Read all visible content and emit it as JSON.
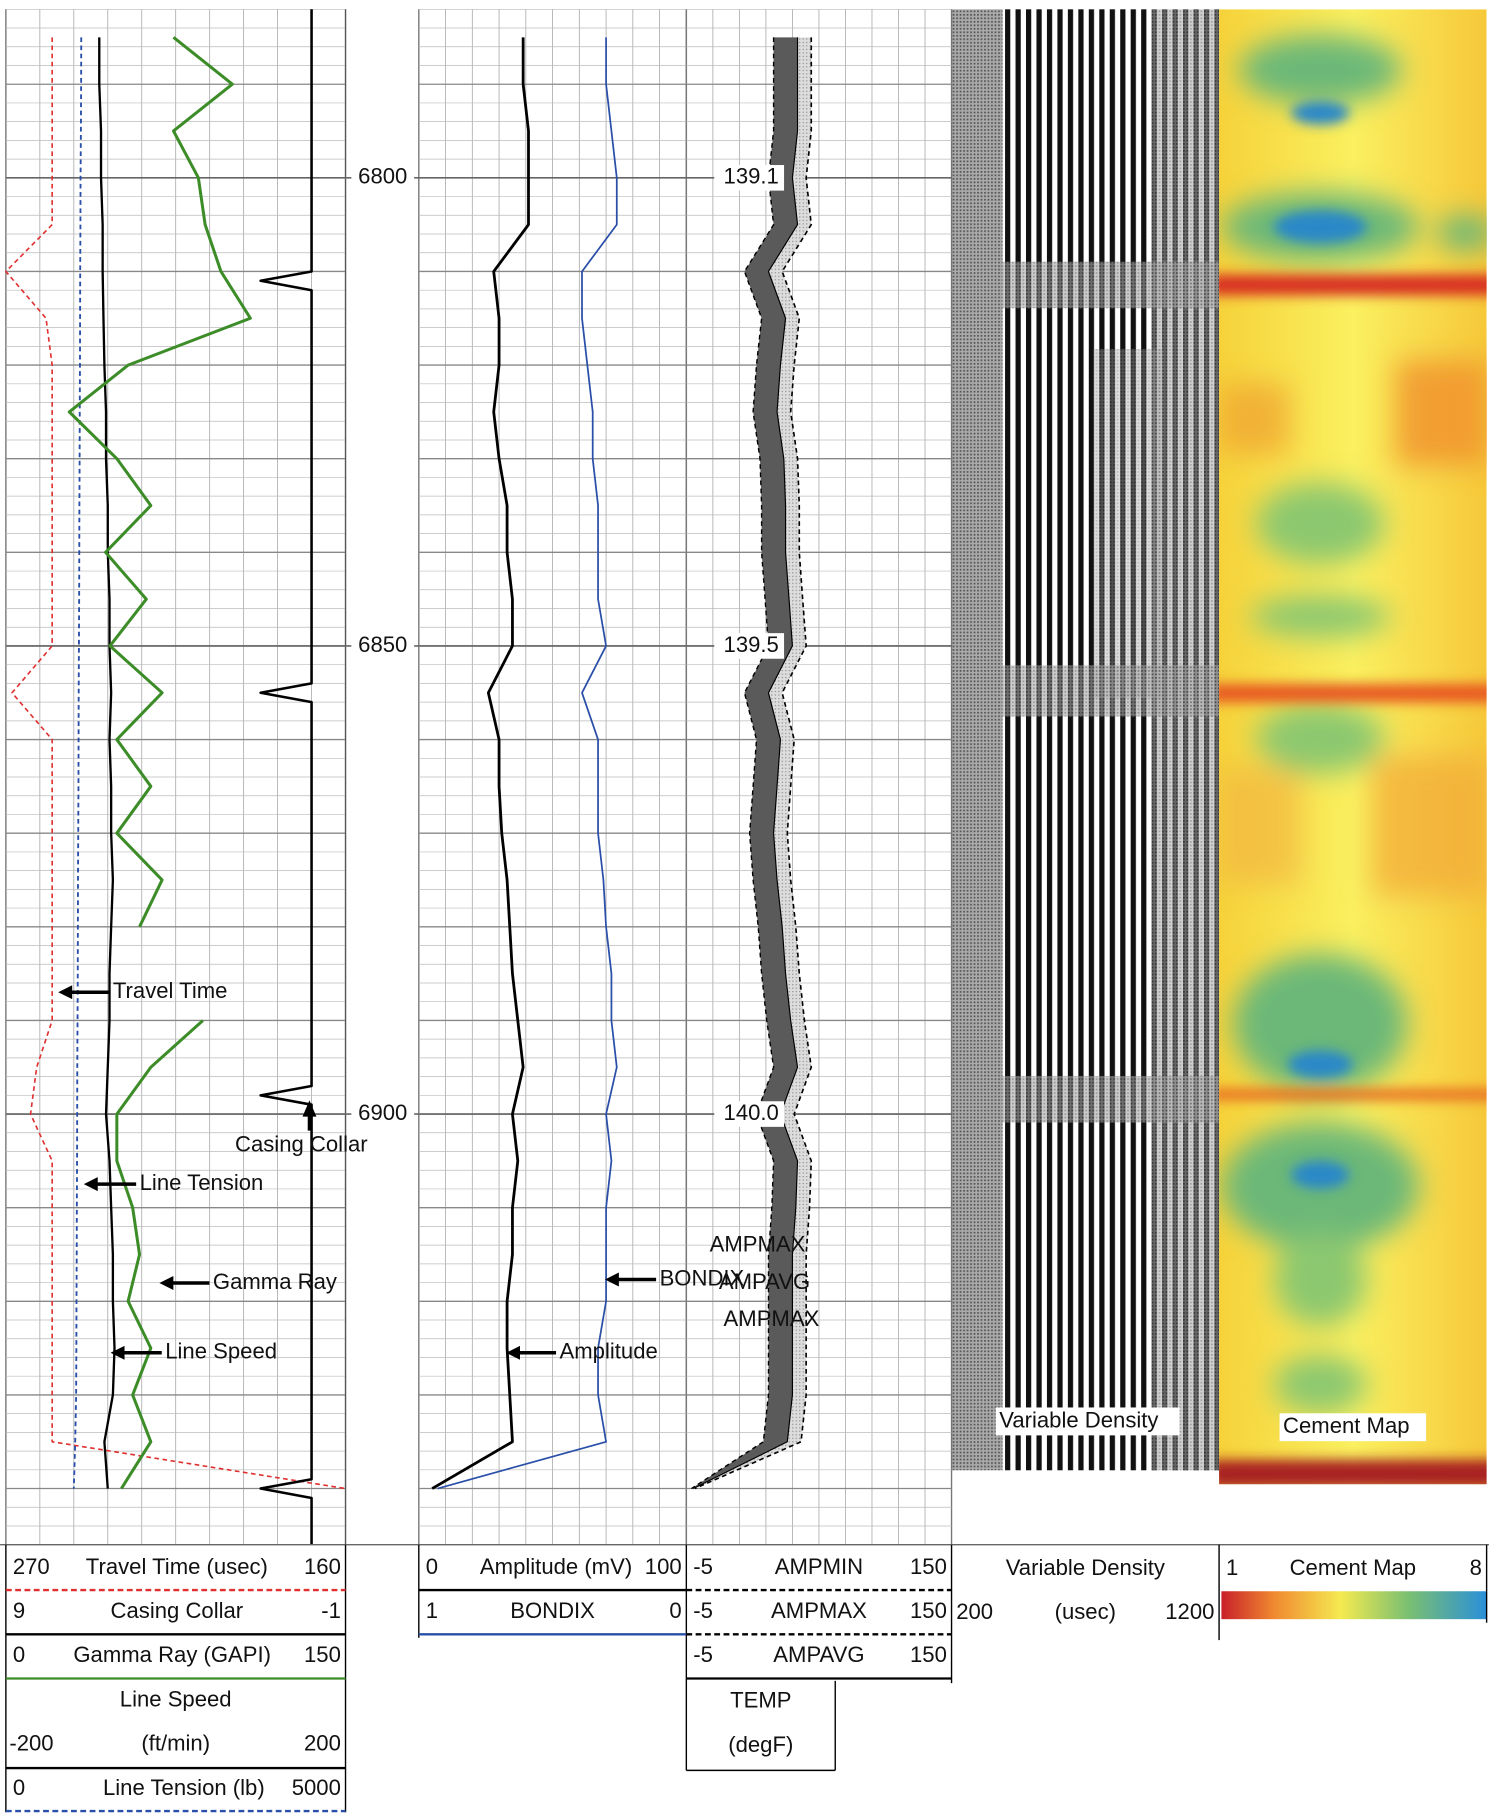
{
  "chart_data": {
    "type": "well-log",
    "depth": {
      "lim": [
        6782,
        6946
      ],
      "ticks": [
        6800,
        6850,
        6900
      ],
      "samples": [
        6785,
        6790,
        6795,
        6800,
        6805,
        6810,
        6815,
        6820,
        6825,
        6830,
        6835,
        6840,
        6845,
        6850,
        6855,
        6860,
        6865,
        6870,
        6875,
        6880,
        6885,
        6890,
        6895,
        6900,
        6905,
        6910,
        6915,
        6920,
        6925,
        6930,
        6935,
        6940
      ]
    },
    "tracks": [
      {
        "curves": [
          {
            "name": "Travel Time (usec)",
            "left": 270,
            "right": 160,
            "color": "#e03030",
            "dashed": true,
            "values": [
              255,
              255,
              255,
              255,
              255,
              270,
              257,
              255,
              255,
              255,
              255,
              255,
              255,
              255,
              268,
              255,
              255,
              255,
              255,
              255,
              255,
              255,
              260,
              262,
              255,
              255,
              255,
              255,
              255,
              255,
              255,
              160
            ]
          },
          {
            "name": "Casing Collar",
            "left": 9,
            "right": -1,
            "color": "#000000",
            "dashed": false,
            "depths": [
              6782,
              6810,
              6811,
              6812,
              6854,
              6855,
              6856,
              6897,
              6898,
              6899,
              6939,
              6940,
              6941,
              6946
            ],
            "values": [
              0,
              0,
              1.5,
              0,
              0,
              1.5,
              0,
              0,
              1.5,
              0,
              0,
              1.5,
              0,
              0
            ]
          },
          {
            "name": "Gamma Ray (GAPI)",
            "left": 0,
            "right": 150,
            "color": "#3c8c28",
            "dashed": false,
            "values": [
              74,
              100,
              74,
              85,
              88,
              95,
              108,
              54,
              28,
              49,
              64,
              44,
              62,
              46,
              69,
              49,
              64,
              49,
              69,
              59,
              null,
              87,
              64,
              49,
              49,
              56,
              59,
              54,
              64,
              56,
              64,
              51
            ]
          },
          {
            "name": "Line Speed",
            "unit": "(ft/min)",
            "left": -200,
            "right": 200,
            "color": "#000000",
            "dashed": false,
            "values": [
              -90,
              -90,
              -88,
              -88,
              -86,
              -86,
              -85,
              -84,
              -82,
              -82,
              -80,
              -80,
              -78,
              -78,
              -76,
              -78,
              -76,
              -76,
              -74,
              -76,
              -78,
              -78,
              -80,
              -82,
              -78,
              -76,
              -74,
              -74,
              -72,
              -74,
              -84,
              -80
            ]
          },
          {
            "name": "Line Tension (lb)",
            "left": 0,
            "right": 5000,
            "color": "#2a4fa8",
            "dashed": true,
            "values": [
              1110,
              1108,
              1105,
              1100,
              1098,
              1095,
              1092,
              1090,
              1088,
              1085,
              1082,
              1080,
              1078,
              1075,
              1072,
              1070,
              1068,
              1065,
              1062,
              1060,
              1058,
              1055,
              1052,
              1050,
              1048,
              1045,
              1042,
              1040,
              1038,
              1035,
              1020,
              1000
            ]
          }
        ],
        "annotations": [
          "Travel Time",
          "Casing Collar",
          "Line Tension",
          "Gamma Ray",
          "Line Speed"
        ]
      },
      {
        "curves": [
          {
            "name": "Amplitude (mV)",
            "left": 0,
            "right": 100,
            "color": "#000000",
            "dashed": false,
            "values": [
              39,
              39,
              41,
              41,
              41,
              28,
              30,
              30,
              28,
              30,
              33,
              33,
              35,
              35,
              26,
              30,
              30,
              31,
              33,
              34,
              35,
              37,
              39,
              35,
              37,
              35,
              35,
              33,
              33,
              34,
              35,
              5
            ]
          },
          {
            "name": "BONDIX",
            "left": 1,
            "right": 0,
            "color": "#2a4fa8",
            "dashed": false,
            "values": [
              0.3,
              0.3,
              0.28,
              0.26,
              0.26,
              0.39,
              0.39,
              0.37,
              0.35,
              0.35,
              0.33,
              0.33,
              0.33,
              0.3,
              0.39,
              0.33,
              0.33,
              0.33,
              0.31,
              0.3,
              0.28,
              0.28,
              0.26,
              0.3,
              0.28,
              0.3,
              0.3,
              0.3,
              0.33,
              0.33,
              0.3,
              0.93
            ]
          }
        ],
        "annotations": [
          "BONDIX",
          "Amplitude"
        ]
      },
      {
        "curves": [
          {
            "name": "AMPMIN",
            "left": -5,
            "right": 150,
            "color": "#000000",
            "dashed": true,
            "values": [
              46,
              46,
              46,
              43,
              46,
              29,
              39,
              36,
              34,
              38,
              39,
              39,
              41,
              43,
              29,
              36,
              34,
              32,
              34,
              37,
              39,
              42,
              46,
              36,
              46,
              45,
              43,
              43,
              43,
              43,
              40,
              -2
            ]
          },
          {
            "name": "AMPMAX",
            "left": -5,
            "right": 150,
            "color": "#000000",
            "dashed": true,
            "values": [
              68,
              68,
              68,
              65,
              68,
              51,
              61,
              58,
              56,
              60,
              61,
              61,
              63,
              65,
              51,
              58,
              56,
              54,
              56,
              59,
              61,
              64,
              68,
              58,
              68,
              67,
              65,
              65,
              65,
              65,
              62,
              0
            ]
          },
          {
            "name": "AMPAVG",
            "left": -5,
            "right": 150,
            "color": "#000000",
            "dashed": false,
            "values": [
              60,
              60,
              60,
              57,
              60,
              43,
              53,
              50,
              48,
              52,
              53,
              53,
              55,
              57,
              43,
              50,
              48,
              46,
              48,
              51,
              53,
              56,
              60,
              50,
              60,
              59,
              57,
              57,
              57,
              57,
              54,
              -1
            ]
          }
        ],
        "temp": {
          "name": "TEMP",
          "unit": "(degF)",
          "labels": [
            "139.1",
            "139.5",
            "140.0"
          ]
        },
        "annotations": [
          "AMPMAX",
          "AMPAVG",
          "AMPMAX"
        ]
      },
      {
        "name": "Variable Density",
        "unit": "(usec)",
        "left": 200,
        "right": 1200,
        "annotations": [
          "Variable Density"
        ]
      },
      {
        "name": "Cement Map",
        "left": 1,
        "right": 8,
        "annotations": [
          "Cement Map"
        ]
      }
    ]
  }
}
